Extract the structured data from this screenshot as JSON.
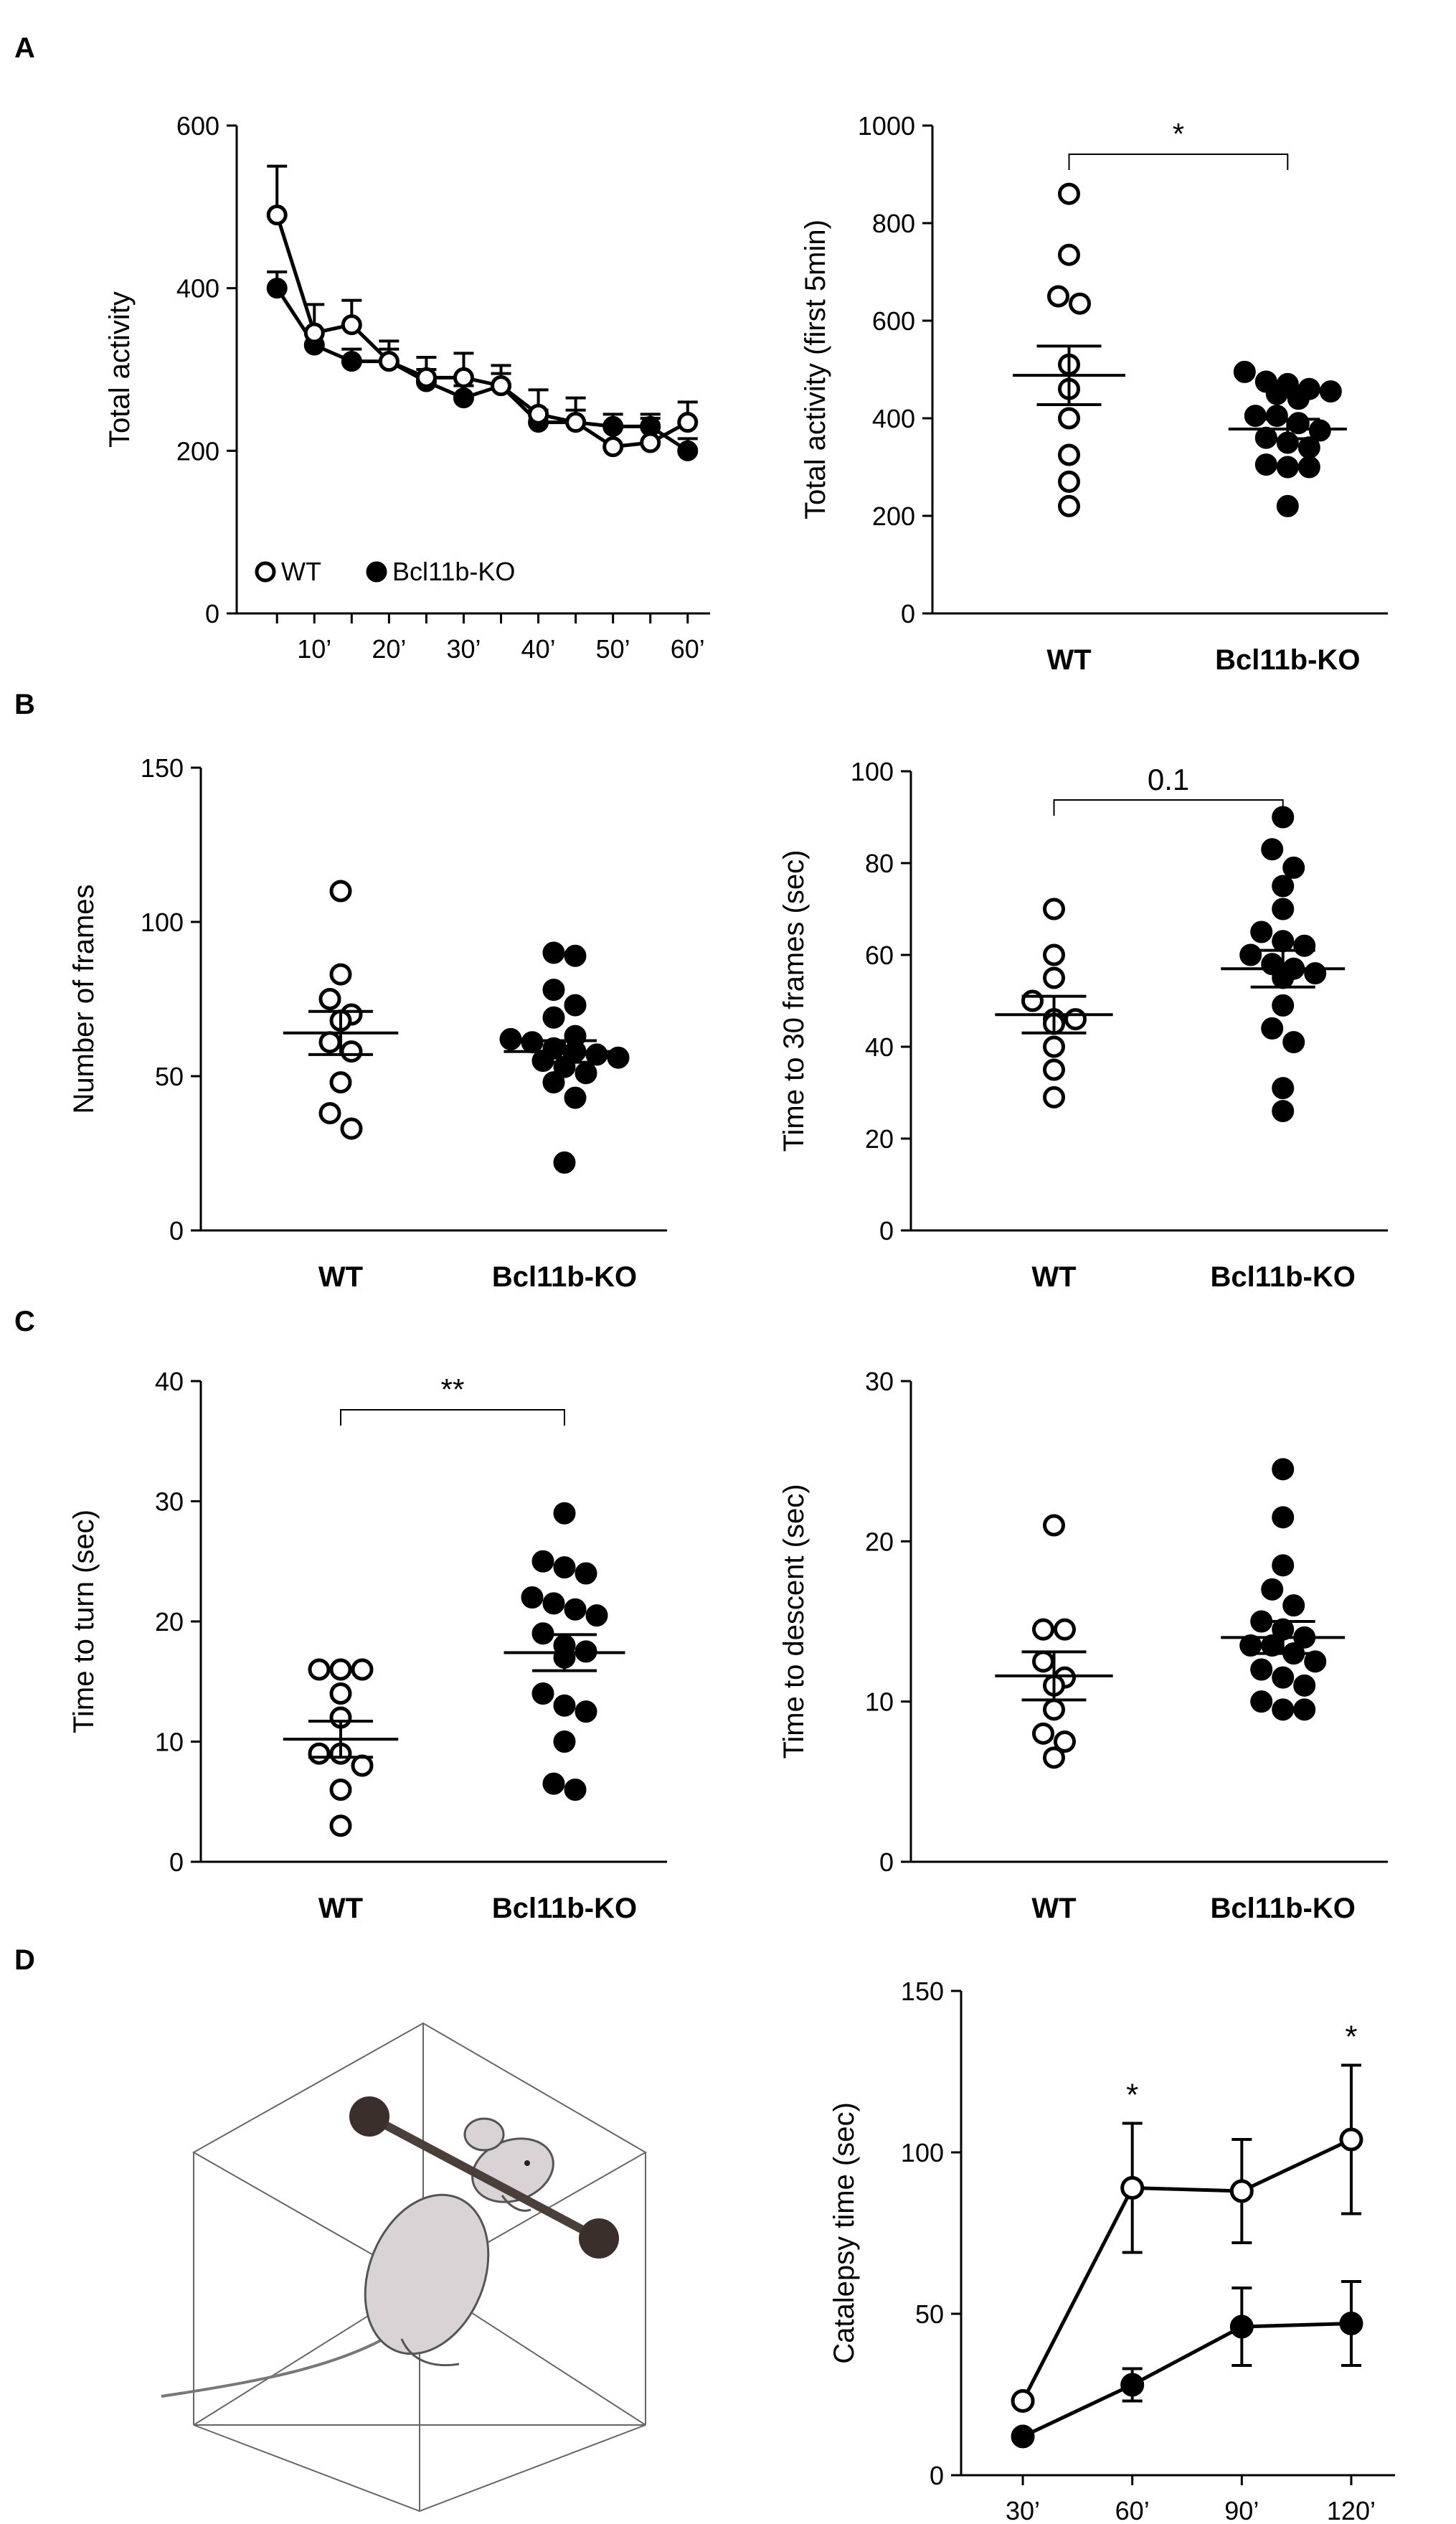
{
  "panels": [
    {
      "letter": "A"
    },
    {
      "letter": "B"
    },
    {
      "letter": "C"
    },
    {
      "letter": "D"
    }
  ],
  "chart_data": [
    {
      "id": "A1",
      "panel": "A",
      "type": "line",
      "ylabel": "Total activity",
      "xlabel": "",
      "ylim": [
        0,
        600
      ],
      "yticks": [
        0,
        200,
        400,
        600
      ],
      "x": [
        5,
        10,
        15,
        20,
        25,
        30,
        35,
        40,
        45,
        50,
        55,
        60
      ],
      "xtick_values": [
        10,
        20,
        30,
        40,
        50,
        60
      ],
      "xtick_labels": [
        "10’",
        "20’",
        "30’",
        "40’",
        "50’",
        "60’"
      ],
      "legend": [
        "WT",
        "Bcl11b-KO"
      ],
      "series": [
        {
          "name": "WT",
          "fill": "open",
          "values": [
            490,
            345,
            355,
            310,
            290,
            290,
            280,
            245,
            235,
            205,
            210,
            235
          ],
          "errors": [
            60,
            35,
            30,
            25,
            25,
            30,
            25,
            30,
            30,
            25,
            30,
            25
          ]
        },
        {
          "name": "Bcl11b-KO",
          "fill": "filled",
          "values": [
            400,
            330,
            310,
            310,
            285,
            265,
            280,
            235,
            235,
            230,
            230,
            200
          ],
          "errors": [
            20,
            15,
            15,
            15,
            15,
            15,
            15,
            15,
            15,
            15,
            15,
            15
          ]
        }
      ]
    },
    {
      "id": "A2",
      "panel": "A",
      "type": "scatter",
      "ylabel": "Total activity (first 5min)",
      "ylim": [
        0,
        1000
      ],
      "yticks": [
        0,
        200,
        400,
        600,
        800,
        1000
      ],
      "categories": [
        "WT",
        "Bcl11b-KO"
      ],
      "groups": [
        {
          "name": "WT",
          "fill": "open",
          "points": [
            860,
            735,
            650,
            635,
            510,
            460,
            400,
            325,
            270,
            220
          ],
          "mean": 488,
          "sem": 60
        },
        {
          "name": "Bcl11b-KO",
          "fill": "filled",
          "points": [
            495,
            475,
            470,
            460,
            455,
            450,
            440,
            405,
            405,
            390,
            375,
            360,
            350,
            340,
            305,
            300,
            300,
            220
          ],
          "mean": 378,
          "sem": 20
        }
      ],
      "significance": "*"
    },
    {
      "id": "B1",
      "panel": "B",
      "type": "scatter",
      "ylabel": "Number of frames",
      "ylim": [
        0,
        150
      ],
      "yticks": [
        0,
        50,
        100,
        150
      ],
      "categories": [
        "WT",
        "Bcl11b-KO"
      ],
      "groups": [
        {
          "name": "WT",
          "fill": "open",
          "points": [
            110,
            83,
            75,
            70,
            68,
            61,
            58,
            48,
            38,
            33
          ],
          "mean": 64,
          "sem": 7
        },
        {
          "name": "Bcl11b-KO",
          "fill": "filled",
          "points": [
            90,
            89,
            78,
            73,
            69,
            63,
            62,
            61,
            59,
            58,
            57,
            56,
            55,
            53,
            51,
            48,
            43,
            22
          ],
          "mean": 58,
          "sem": 3.5
        }
      ]
    },
    {
      "id": "B2",
      "panel": "B",
      "type": "scatter",
      "ylabel": "Time to 30 frames (sec)",
      "ylim": [
        0,
        100
      ],
      "yticks": [
        0,
        20,
        40,
        60,
        80,
        100
      ],
      "categories": [
        "WT",
        "Bcl11b-KO"
      ],
      "groups": [
        {
          "name": "WT",
          "fill": "open",
          "points": [
            70,
            60,
            55,
            50,
            46,
            46,
            45,
            40,
            35,
            29
          ],
          "mean": 47,
          "sem": 4
        },
        {
          "name": "Bcl11b-KO",
          "fill": "filled",
          "points": [
            90,
            83,
            79,
            75,
            70,
            65,
            63,
            62,
            60,
            58,
            57,
            56,
            55,
            49,
            44,
            41,
            31,
            26
          ],
          "mean": 57,
          "sem": 4
        }
      ],
      "significance": "0.1"
    },
    {
      "id": "C1",
      "panel": "C",
      "type": "scatter",
      "ylabel": "Time to turn (sec)",
      "ylim": [
        0,
        40
      ],
      "yticks": [
        0,
        10,
        20,
        30,
        40
      ],
      "categories": [
        "WT",
        "Bcl11b-KO"
      ],
      "groups": [
        {
          "name": "WT",
          "fill": "open",
          "points": [
            16,
            16,
            16,
            14,
            12,
            9,
            9,
            8,
            6,
            3
          ],
          "mean": 10.2,
          "sem": 1.5
        },
        {
          "name": "Bcl11b-KO",
          "fill": "filled",
          "points": [
            29,
            25,
            24.5,
            24,
            22,
            21.5,
            21,
            20.5,
            19,
            18,
            17.5,
            17,
            14,
            13,
            12.5,
            10,
            6.5,
            6
          ],
          "mean": 17.4,
          "sem": 1.5
        }
      ],
      "significance": "**"
    },
    {
      "id": "C2",
      "panel": "C",
      "type": "scatter",
      "ylabel": "Time to descent (sec)",
      "ylim": [
        0,
        30
      ],
      "yticks": [
        0,
        10,
        20,
        30
      ],
      "categories": [
        "WT",
        "Bcl11b-KO"
      ],
      "groups": [
        {
          "name": "WT",
          "fill": "open",
          "points": [
            21,
            14.5,
            14.5,
            12.5,
            11.5,
            11,
            9.5,
            8,
            7.5,
            6.5
          ],
          "mean": 11.6,
          "sem": 1.5
        },
        {
          "name": "Bcl11b-KO",
          "fill": "filled",
          "points": [
            24.5,
            21.5,
            18.5,
            17,
            16,
            15,
            14.5,
            14,
            13.5,
            13.5,
            13,
            12.5,
            12,
            11.5,
            11,
            10,
            9.5,
            9.5
          ],
          "mean": 14,
          "sem": 1
        }
      ]
    },
    {
      "id": "D2",
      "panel": "D",
      "type": "line",
      "ylabel": "Catalepsy time (sec)",
      "xlabel": "",
      "ylim": [
        0,
        150
      ],
      "yticks": [
        0,
        50,
        100,
        150
      ],
      "x": [
        30,
        60,
        90,
        120
      ],
      "xtick_values": [
        30,
        60,
        90,
        120
      ],
      "xtick_labels": [
        "30’",
        "60’",
        "90’",
        "120’"
      ],
      "series": [
        {
          "name": "WT",
          "fill": "open",
          "values": [
            23,
            89,
            88,
            104
          ],
          "errors": [
            0,
            20,
            16,
            23
          ]
        },
        {
          "name": "Bcl11b-KO",
          "fill": "filled",
          "values": [
            12,
            28,
            46,
            47
          ],
          "errors": [
            0,
            5,
            12,
            13
          ]
        }
      ],
      "significance_marks": [
        {
          "x": 60,
          "label": "*"
        },
        {
          "x": 120,
          "label": "*"
        }
      ]
    }
  ]
}
